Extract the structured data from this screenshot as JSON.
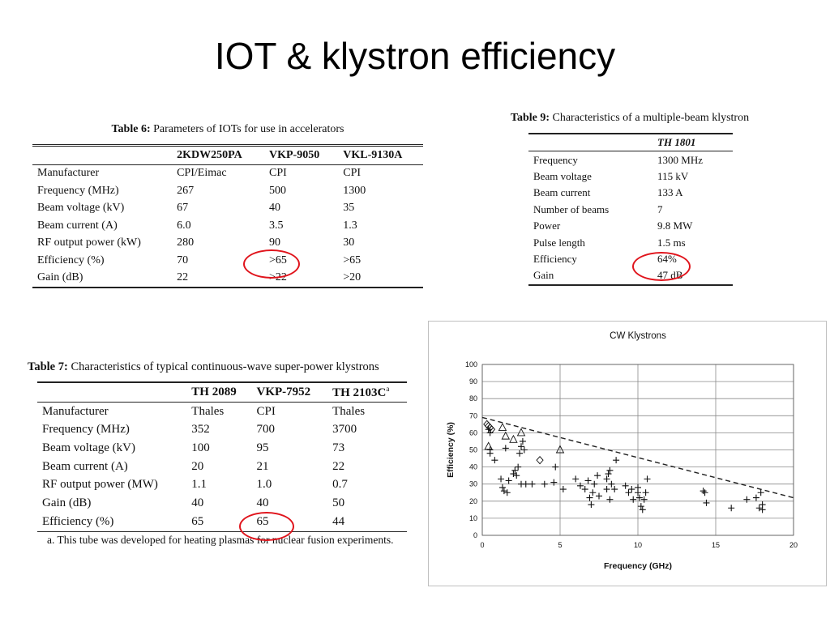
{
  "slide": {
    "title": "IOT & klystron efficiency"
  },
  "table6": {
    "caption_bold": "Table 6:",
    "caption_text": " Parameters of IOTs for use in accelerators",
    "headers": [
      "",
      "2KDW250PA",
      "VKP-9050",
      "VKL-9130A"
    ],
    "rows": [
      [
        "Manufacturer",
        "CPI/Eimac",
        "CPI",
        "CPI"
      ],
      [
        "Frequency (MHz)",
        "267",
        "500",
        "1300"
      ],
      [
        "Beam voltage (kV)",
        "67",
        "40",
        "35"
      ],
      [
        "Beam current (A)",
        "6.0",
        "3.5",
        "1.3"
      ],
      [
        "RF output power (kW)",
        "280",
        "90",
        "30"
      ],
      [
        "Efficiency (%)",
        "70",
        ">65",
        ">65"
      ],
      [
        "Gain (dB)",
        "22",
        ">22",
        ">20"
      ]
    ]
  },
  "table9": {
    "caption_bold": "Table 9:",
    "caption_text": " Characteristics of a multiple-beam klystron",
    "header": "TH 1801",
    "rows": [
      [
        "Frequency",
        "1300 MHz"
      ],
      [
        "Beam voltage",
        "115 kV"
      ],
      [
        "Beam current",
        "133 A"
      ],
      [
        "Number of beams",
        "7"
      ],
      [
        "Power",
        "9.8 MW"
      ],
      [
        "Pulse length",
        "1.5 ms"
      ],
      [
        "Efficiency",
        "64%"
      ],
      [
        "Gain",
        "47 dB"
      ]
    ]
  },
  "table7": {
    "caption_bold": "Table 7:",
    "caption_text": " Characteristics of typical continuous-wave super-power klystrons",
    "headers": [
      "",
      "TH 2089",
      "VKP-7952",
      "TH 2103C"
    ],
    "header_sup": "a",
    "rows": [
      [
        "Manufacturer",
        "Thales",
        "CPI",
        "Thales"
      ],
      [
        "Frequency (MHz)",
        "352",
        "700",
        "3700"
      ],
      [
        "Beam voltage (kV)",
        "100",
        "95",
        "73"
      ],
      [
        "Beam current (A)",
        "20",
        "21",
        "22"
      ],
      [
        "RF output power (MW)",
        "1.1",
        "1.0",
        "0.7"
      ],
      [
        "Gain (dB)",
        "40",
        "40",
        "50"
      ],
      [
        "Efficiency (%)",
        "65",
        "65",
        "44"
      ]
    ],
    "footnote": "a. This tube was developed for heating plasmas for nuclear fusion experiments."
  },
  "highlight_color": "#e0141c",
  "chart_data": {
    "type": "scatter",
    "title": "CW Klystrons",
    "xlabel": "Frequency (GHz)",
    "ylabel": "Efficiency (%)",
    "xlim": [
      0,
      20
    ],
    "ylim": [
      0,
      100
    ],
    "xticks": [
      0,
      5,
      10,
      15,
      20
    ],
    "yticks": [
      0,
      10,
      20,
      30,
      40,
      50,
      60,
      70,
      80,
      90,
      100
    ],
    "grid": true,
    "trend_line": {
      "style": "dashed",
      "points": [
        [
          0,
          69
        ],
        [
          20,
          22
        ]
      ]
    },
    "series": [
      {
        "marker": "plus",
        "points": [
          [
            0.4,
            62
          ],
          [
            0.5,
            60
          ],
          [
            0.5,
            50
          ],
          [
            0.5,
            48
          ],
          [
            0.8,
            44
          ],
          [
            1.2,
            33
          ],
          [
            1.3,
            28
          ],
          [
            1.4,
            26
          ],
          [
            1.5,
            51
          ],
          [
            1.6,
            25
          ],
          [
            1.7,
            32
          ],
          [
            2.0,
            36
          ],
          [
            2.1,
            38
          ],
          [
            2.2,
            35
          ],
          [
            2.3,
            40
          ],
          [
            2.4,
            48
          ],
          [
            2.5,
            52
          ],
          [
            2.6,
            55
          ],
          [
            2.5,
            30
          ],
          [
            2.7,
            50
          ],
          [
            2.8,
            30
          ],
          [
            3.2,
            30
          ],
          [
            4.0,
            30
          ],
          [
            4.6,
            31
          ],
          [
            4.7,
            40
          ],
          [
            5.2,
            27
          ],
          [
            6.0,
            33
          ],
          [
            6.3,
            29
          ],
          [
            6.6,
            27
          ],
          [
            6.8,
            32
          ],
          [
            6.9,
            22
          ],
          [
            7.0,
            18
          ],
          [
            7.1,
            25
          ],
          [
            7.2,
            30
          ],
          [
            7.4,
            35
          ],
          [
            7.5,
            23
          ],
          [
            8.0,
            33
          ],
          [
            8.0,
            27
          ],
          [
            8.1,
            36
          ],
          [
            8.2,
            38
          ],
          [
            8.2,
            21
          ],
          [
            8.3,
            30
          ],
          [
            8.5,
            27
          ],
          [
            8.6,
            44
          ],
          [
            9.2,
            29
          ],
          [
            9.4,
            25
          ],
          [
            9.6,
            27
          ],
          [
            9.7,
            21
          ],
          [
            10.0,
            28
          ],
          [
            10.0,
            25
          ],
          [
            10.1,
            22
          ],
          [
            10.2,
            17
          ],
          [
            10.3,
            15
          ],
          [
            10.4,
            21
          ],
          [
            10.5,
            25
          ],
          [
            10.6,
            33
          ],
          [
            14.2,
            26
          ],
          [
            14.3,
            25
          ],
          [
            14.4,
            19
          ],
          [
            16.0,
            16
          ],
          [
            17.0,
            21
          ],
          [
            17.6,
            22
          ],
          [
            17.8,
            16
          ],
          [
            17.9,
            25
          ],
          [
            18.0,
            18
          ],
          [
            18.0,
            15
          ]
        ]
      },
      {
        "marker": "triangle",
        "points": [
          [
            0.4,
            52
          ],
          [
            1.3,
            63
          ],
          [
            1.5,
            58
          ],
          [
            2.0,
            56
          ],
          [
            2.5,
            60
          ],
          [
            5.0,
            50
          ]
        ]
      },
      {
        "marker": "diamond",
        "points": [
          [
            0.3,
            65
          ],
          [
            0.4,
            64
          ],
          [
            0.5,
            63
          ],
          [
            0.6,
            62
          ],
          [
            3.7,
            44
          ]
        ]
      }
    ]
  }
}
